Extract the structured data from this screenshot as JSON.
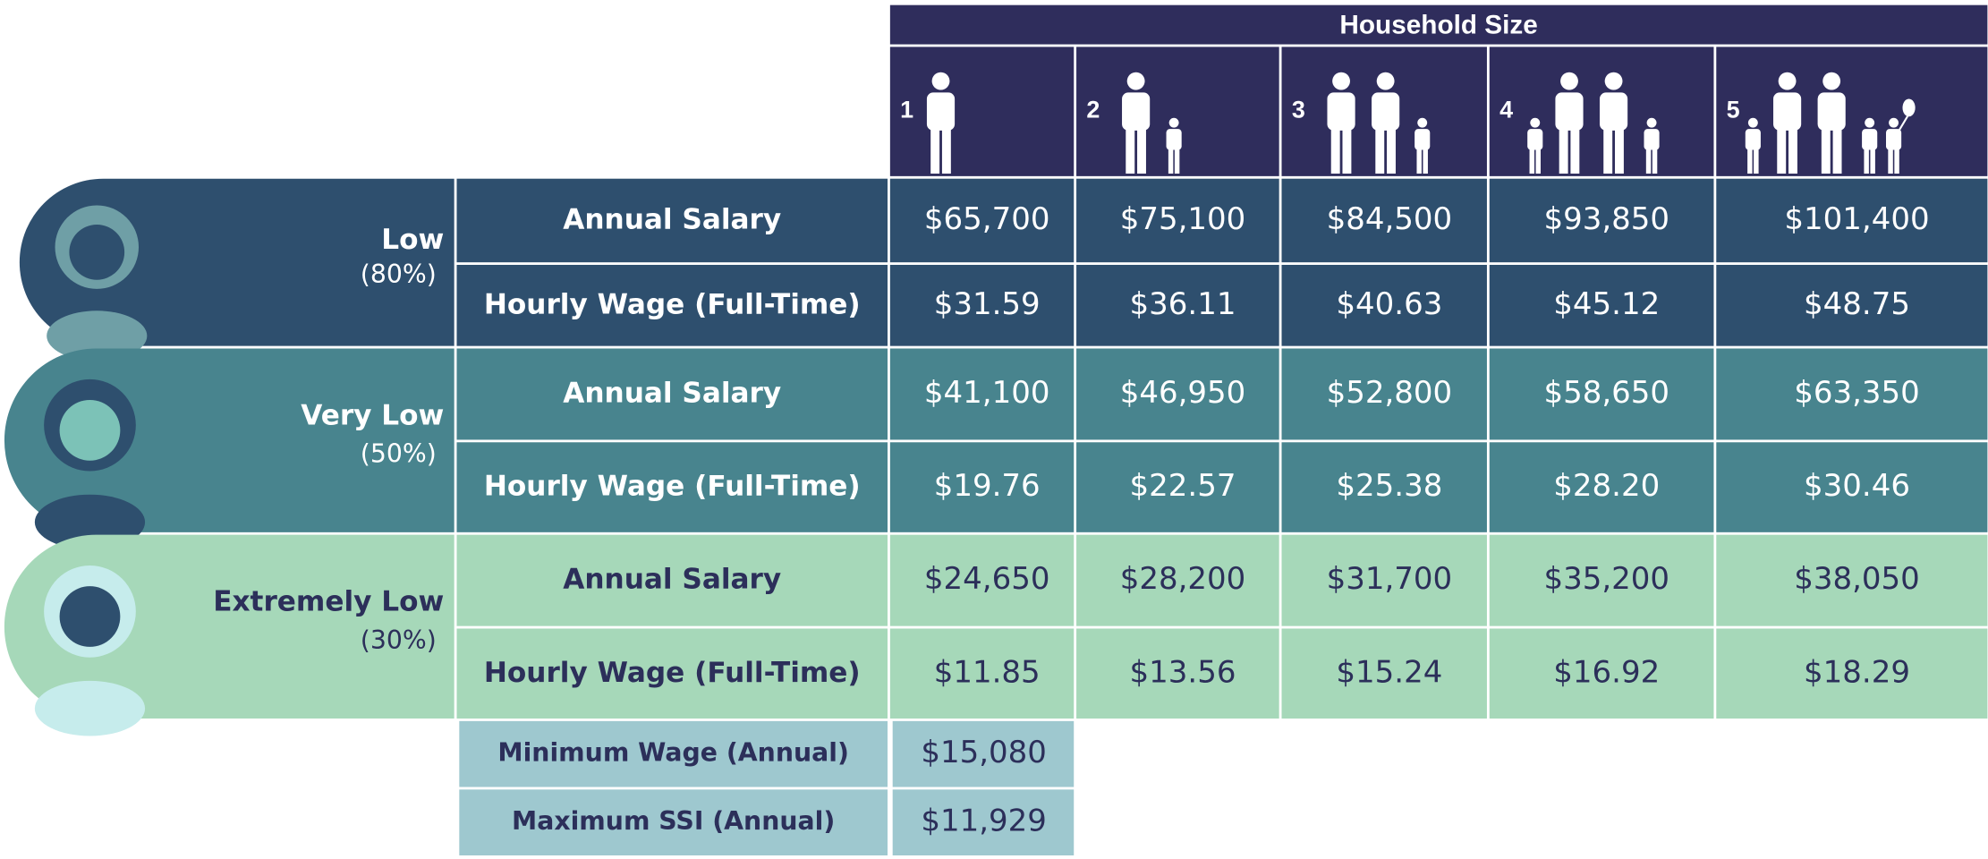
{
  "header": {
    "title": "Household Size",
    "sizes": [
      "1",
      "2",
      "3",
      "4",
      "5"
    ]
  },
  "groups": [
    {
      "label": "Low",
      "percent": "(80%)",
      "rows": [
        {
          "label": "Annual Salary",
          "values": [
            "$65,700",
            "$75,100",
            "$84,500",
            "$93,850",
            "$101,400"
          ]
        },
        {
          "label": "Hourly Wage (Full-Time)",
          "values": [
            "$31.59",
            "$36.11",
            "$40.63",
            "$45.12",
            "$48.75"
          ]
        }
      ]
    },
    {
      "label": "Very Low",
      "percent": "(50%)",
      "rows": [
        {
          "label": "Annual Salary",
          "values": [
            "$41,100",
            "$46,950",
            "$52,800",
            "$58,650",
            "$63,350"
          ]
        },
        {
          "label": "Hourly Wage (Full-Time)",
          "values": [
            "$19.76",
            "$22.57",
            "$25.38",
            "$28.20",
            "$30.46"
          ]
        }
      ]
    },
    {
      "label": "Extremely Low",
      "percent": "(30%)",
      "rows": [
        {
          "label": "Annual Salary",
          "values": [
            "$24,650",
            "$28,200",
            "$31,700",
            "$35,200",
            "$38,050"
          ]
        },
        {
          "label": "Hourly Wage (Full-Time)",
          "values": [
            "$11.85",
            "$13.56",
            "$15.24",
            "$16.92",
            "$18.29"
          ]
        }
      ]
    }
  ],
  "extra": {
    "rows": [
      {
        "label": "Minimum Wage (Annual)",
        "value": "$15,080"
      },
      {
        "label": "Maximum SSI (Annual)",
        "value": "$11,929"
      }
    ]
  }
}
